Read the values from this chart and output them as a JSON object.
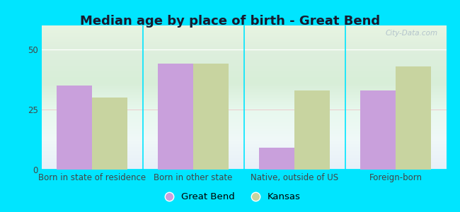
{
  "title": "Median age by place of birth - Great Bend",
  "categories": [
    "Born in state of residence",
    "Born in other state",
    "Native, outside of US",
    "Foreign-born"
  ],
  "great_bend_values": [
    35,
    44,
    9,
    33
  ],
  "kansas_values": [
    30,
    44,
    33,
    43
  ],
  "great_bend_color": "#c9a0dc",
  "kansas_color": "#c8d4a0",
  "background_color": "#00e5ff",
  "ylim": [
    0,
    60
  ],
  "yticks": [
    0,
    25,
    50
  ],
  "bar_width": 0.35,
  "legend_labels": [
    "Great Bend",
    "Kansas"
  ],
  "title_fontsize": 13,
  "axis_fontsize": 8.5,
  "legend_fontsize": 9.5,
  "watermark": "City-Data.com"
}
